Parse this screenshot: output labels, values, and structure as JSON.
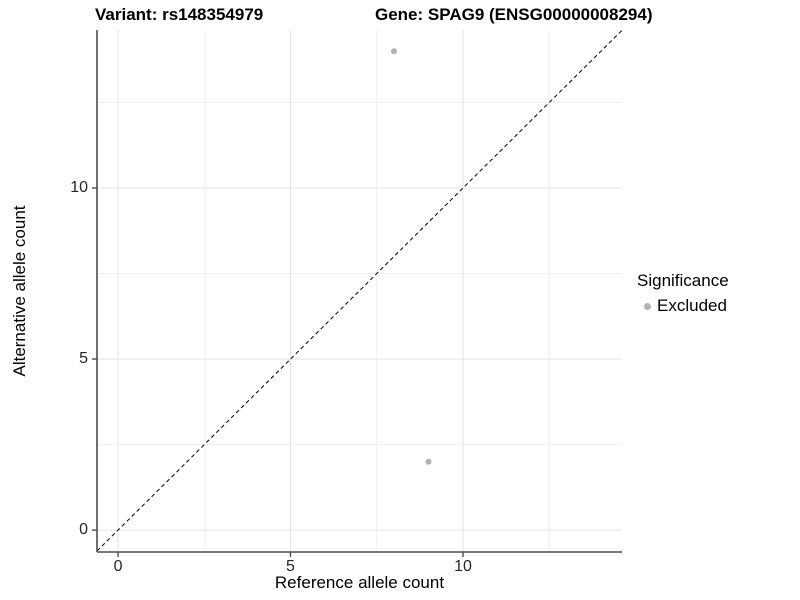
{
  "header": {
    "title_left": "Variant: rs148354979",
    "title_right": "Gene: SPAG9 (ENSG00000008294)"
  },
  "axes": {
    "x_label": "Reference allele count",
    "y_label": "Alternative allele count"
  },
  "legend": {
    "title": "Significance",
    "items": [
      {
        "label": "Excluded",
        "marker_color": "#b3b3b3"
      }
    ]
  },
  "colors": {
    "background": "#ffffff",
    "axis_line": "#4d4d4d",
    "grid_major": "#e4e4e4",
    "grid_minor": "#f0f0f0",
    "tick_label": "#262626",
    "point": "#b3b3b3",
    "dashed_line": "#000000"
  },
  "chart_data": {
    "type": "scatter",
    "title": "Variant: rs148354979",
    "subtitle": "Gene: SPAG9 (ENSG00000008294)",
    "xlabel": "Reference allele count",
    "ylabel": "Alternative allele count",
    "xlim": [
      -0.61,
      14.61
    ],
    "ylim": [
      -0.64,
      14.62
    ],
    "x_ticks": [
      0,
      5,
      10
    ],
    "y_ticks": [
      0,
      5,
      10
    ],
    "x_minor_gridlines": [
      2.5,
      7.5,
      12.5
    ],
    "y_minor_gridlines": [
      2.5,
      7.5,
      12.5
    ],
    "grid": "major+minor",
    "legend_position": "right",
    "legend_title": "Significance",
    "series": [
      {
        "name": "Excluded",
        "color": "#b3b3b3",
        "marker": "circle",
        "points": [
          [
            8,
            14
          ],
          [
            9,
            2
          ]
        ]
      }
    ],
    "identity_line": {
      "equation": "y = x",
      "style": "dashed",
      "color": "#000000"
    }
  }
}
